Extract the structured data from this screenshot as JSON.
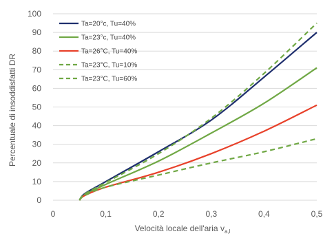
{
  "chart_data": {
    "type": "line",
    "title": "",
    "xlabel": "Velocità locale dell'aria v",
    "xlabel_sub": "a,l",
    "ylabel": "Percentuale di insoddisfatti DR",
    "xlim": [
      0,
      0.5
    ],
    "ylim": [
      0,
      100
    ],
    "x_ticks": [
      0,
      0.1,
      0.2,
      0.3,
      0.4,
      0.5
    ],
    "x_tick_labels": [
      "0",
      "0,1",
      "0,2",
      "0,3",
      "0,4",
      "0,5"
    ],
    "y_ticks": [
      0,
      10,
      20,
      30,
      40,
      50,
      60,
      70,
      80,
      90,
      100
    ],
    "y_tick_labels": [
      "0",
      "10",
      "20",
      "30",
      "40",
      "50",
      "60",
      "70",
      "80",
      "90",
      "100"
    ],
    "grid": "horizontal",
    "legend": "top-left",
    "x": [
      0.05,
      0.06,
      0.1,
      0.2,
      0.3,
      0.4,
      0.5
    ],
    "series": [
      {
        "name": "Ta=20°c, Tu=40%",
        "color": "#1f2f6e",
        "dash": "solid",
        "values": [
          0,
          3.5,
          10,
          26,
          43,
          66,
          90
        ]
      },
      {
        "name": "Ta=23°c, Tu=40%",
        "color": "#70a845",
        "dash": "solid",
        "values": [
          0,
          3,
          8.5,
          21,
          36,
          52,
          71
        ]
      },
      {
        "name": "Ta=26°C, Tu=40%",
        "color": "#e8412a",
        "dash": "solid",
        "values": [
          0,
          2.5,
          7,
          15,
          25,
          37,
          51
        ]
      },
      {
        "name": "Ta=23°C, Tu=10%",
        "color": "#70a845",
        "dash": "dashed",
        "values": [
          0,
          2.5,
          7,
          13.5,
          20,
          26,
          33
        ]
      },
      {
        "name": "Ta=23°C, Tu=60%",
        "color": "#70a845",
        "dash": "dashed",
        "values": [
          0,
          3.3,
          9.5,
          25,
          44,
          68,
          95
        ]
      }
    ]
  }
}
